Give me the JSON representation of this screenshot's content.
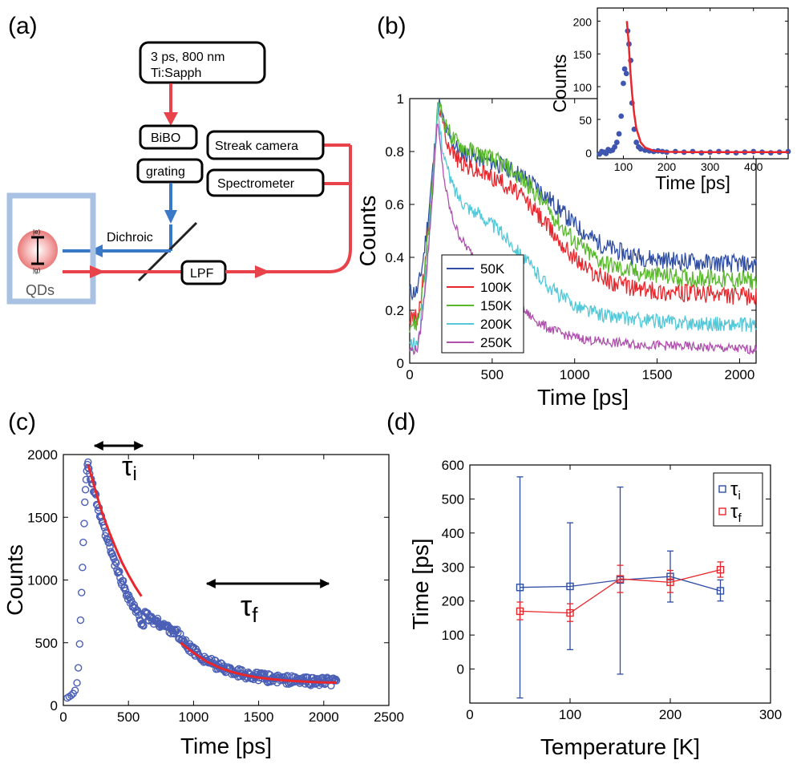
{
  "panels": {
    "a": "(a)",
    "b": "(b)",
    "c": "(c)",
    "d": "(d)"
  },
  "diagram": {
    "laser_line1": "3 ps, 800 nm",
    "laser_line2": "Ti:Sapph",
    "bibo": "BiBO",
    "grating": "grating",
    "streak": "Streak camera",
    "spectrometer": "Spectrometer",
    "dichroic": "Dichroic",
    "lpf": "LPF",
    "qds": "QDs",
    "state_e": "|e⟩",
    "state_g": "|g⟩",
    "colors": {
      "pump": "#e8434a",
      "blue": "#3a78c8",
      "frame": "#a9c1e3"
    }
  },
  "chart_data": [
    {
      "id": "b-main",
      "type": "line",
      "title": "",
      "xlabel": "Time [ps]",
      "ylabel": "Counts",
      "xlim": [
        0,
        2100
      ],
      "ylim": [
        0,
        1
      ],
      "xticks": [
        0,
        500,
        1000,
        1500,
        2000
      ],
      "yticks": [
        0,
        0.2,
        0.4,
        0.6,
        0.8,
        1
      ],
      "ytick_labels": [
        "0",
        "0.2",
        "0.4",
        "0.6",
        "0.8",
        "1"
      ],
      "legend_position": "bottom-left",
      "series": [
        {
          "name": "50K",
          "color": "#2f4ea3",
          "baseline": 0.27,
          "peak_t": 175,
          "peak": 1.0,
          "plateau": 0.79,
          "final": 0.42,
          "knee_t": 900,
          "noise": 0.035
        },
        {
          "name": "100K",
          "color": "#e8262b",
          "baseline": 0.17,
          "peak_t": 175,
          "peak": 1.0,
          "plateau": 0.75,
          "final": 0.3,
          "knee_t": 850,
          "noise": 0.035
        },
        {
          "name": "150K",
          "color": "#59b82b",
          "baseline": 0.15,
          "peak_t": 175,
          "peak": 1.0,
          "plateau": 0.82,
          "final": 0.36,
          "knee_t": 850,
          "noise": 0.035
        },
        {
          "name": "200K",
          "color": "#52c8d8",
          "baseline": 0.07,
          "peak_t": 170,
          "peak": 0.97,
          "plateau": 0.62,
          "final": 0.19,
          "knee_t": 700,
          "noise": 0.028
        },
        {
          "name": "250K",
          "color": "#b04fae",
          "baseline": 0.05,
          "peak_t": 170,
          "peak": 0.95,
          "plateau": 0.5,
          "final": 0.1,
          "knee_t": 550,
          "noise": 0.018
        }
      ]
    },
    {
      "id": "b-inset",
      "type": "scatter",
      "title": "",
      "xlabel": "Time [ps]",
      "ylabel": "Counts",
      "xlim": [
        40,
        480
      ],
      "ylim": [
        -10,
        220
      ],
      "xticks": [
        100,
        200,
        300,
        400
      ],
      "yticks": [
        0,
        50,
        100,
        150,
        200
      ],
      "points": [
        [
          45,
          -3
        ],
        [
          50,
          1
        ],
        [
          55,
          0
        ],
        [
          60,
          -2
        ],
        [
          65,
          4
        ],
        [
          70,
          2
        ],
        [
          75,
          3
        ],
        [
          80,
          8
        ],
        [
          85,
          15
        ],
        [
          90,
          28
        ],
        [
          95,
          55
        ],
        [
          100,
          105
        ],
        [
          103,
          127
        ],
        [
          107,
          120
        ],
        [
          110,
          185
        ],
        [
          113,
          165
        ],
        [
          117,
          140
        ],
        [
          120,
          75
        ],
        [
          125,
          35
        ],
        [
          130,
          15
        ],
        [
          135,
          8
        ],
        [
          140,
          5
        ],
        [
          150,
          3
        ],
        [
          160,
          2
        ],
        [
          170,
          1
        ],
        [
          180,
          2
        ],
        [
          190,
          1
        ],
        [
          200,
          0
        ],
        [
          220,
          1
        ],
        [
          240,
          0
        ],
        [
          260,
          1
        ],
        [
          280,
          -1
        ],
        [
          300,
          0
        ],
        [
          320,
          1
        ],
        [
          340,
          0
        ],
        [
          360,
          -1
        ],
        [
          380,
          0
        ],
        [
          400,
          1
        ],
        [
          420,
          0
        ],
        [
          440,
          -1
        ],
        [
          460,
          0
        ],
        [
          480,
          1
        ]
      ],
      "fit": [
        [
          108,
          200
        ],
        [
          112,
          170
        ],
        [
          116,
          125
        ],
        [
          120,
          90
        ],
        [
          125,
          58
        ],
        [
          130,
          36
        ],
        [
          140,
          15
        ],
        [
          150,
          7
        ],
        [
          170,
          2
        ],
        [
          200,
          0.5
        ],
        [
          250,
          0
        ],
        [
          480,
          0
        ]
      ]
    },
    {
      "id": "c",
      "type": "scatter",
      "title": "",
      "xlabel": "Time [ps]",
      "ylabel": "Counts",
      "xlim": [
        0,
        2500
      ],
      "ylim": [
        0,
        2000
      ],
      "xticks": [
        0,
        500,
        1000,
        1500,
        2000,
        2500
      ],
      "yticks": [
        0,
        500,
        1000,
        1500,
        2000
      ],
      "annotation_tau_i": "τi",
      "annotation_tau_f": "τf",
      "rise_points": [
        [
          30,
          60
        ],
        [
          45,
          70
        ],
        [
          60,
          80
        ],
        [
          75,
          95
        ],
        [
          90,
          120
        ],
        [
          105,
          180
        ],
        [
          115,
          300
        ],
        [
          125,
          490
        ],
        [
          132,
          680
        ],
        [
          140,
          900
        ],
        [
          147,
          1100
        ],
        [
          153,
          1300
        ],
        [
          160,
          1450
        ],
        [
          165,
          1620
        ],
        [
          170,
          1720
        ],
        [
          175,
          1800
        ],
        [
          180,
          1870
        ],
        [
          185,
          1920
        ],
        [
          190,
          1940
        ]
      ],
      "decay": {
        "start": 190,
        "end": 2100,
        "peak": 1920,
        "tau_i": 270,
        "shoulder_t": 820,
        "shoulder": 560,
        "tau_f": 300,
        "floor": 180
      },
      "fit1": [
        [
          190,
          1920
        ],
        [
          250,
          1700
        ],
        [
          300,
          1530
        ],
        [
          350,
          1390
        ],
        [
          400,
          1260
        ],
        [
          450,
          1140
        ],
        [
          500,
          1040
        ],
        [
          550,
          950
        ],
        [
          600,
          870
        ]
      ],
      "fit2": [
        [
          900,
          500
        ],
        [
          1000,
          420
        ],
        [
          1100,
          350
        ],
        [
          1200,
          300
        ],
        [
          1300,
          265
        ],
        [
          1400,
          240
        ],
        [
          1500,
          222
        ],
        [
          1600,
          210
        ],
        [
          1700,
          200
        ],
        [
          1800,
          193
        ],
        [
          1900,
          188
        ],
        [
          2000,
          184
        ],
        [
          2100,
          182
        ]
      ]
    },
    {
      "id": "d",
      "type": "scatter",
      "title": "",
      "xlabel": "Temperature [K]",
      "ylabel": "Time [ps]",
      "xlim": [
        0,
        300
      ],
      "ylim": [
        -100,
        600
      ],
      "xticks": [
        0,
        100,
        200,
        300
      ],
      "yticks": [
        0,
        100,
        200,
        300,
        400,
        500,
        600
      ],
      "legend_position": "top-right",
      "series": [
        {
          "name": "τi",
          "legend_main": "τ",
          "legend_sub": "i",
          "color": "#2f4ea3",
          "x": [
            50,
            100,
            150,
            200,
            250
          ],
          "y": [
            240,
            243,
            262,
            272,
            230
          ],
          "err_low": [
            -85,
            57,
            -15,
            197,
            200
          ],
          "err_high": [
            565,
            430,
            535,
            347,
            262
          ]
        },
        {
          "name": "τf",
          "legend_main": "τ",
          "legend_sub": "f",
          "color": "#e8262b",
          "x": [
            50,
            100,
            150,
            200,
            250
          ],
          "y": [
            170,
            165,
            265,
            255,
            292
          ],
          "err_low": [
            145,
            140,
            225,
            225,
            270
          ],
          "err_high": [
            197,
            192,
            305,
            290,
            315
          ]
        }
      ]
    }
  ]
}
